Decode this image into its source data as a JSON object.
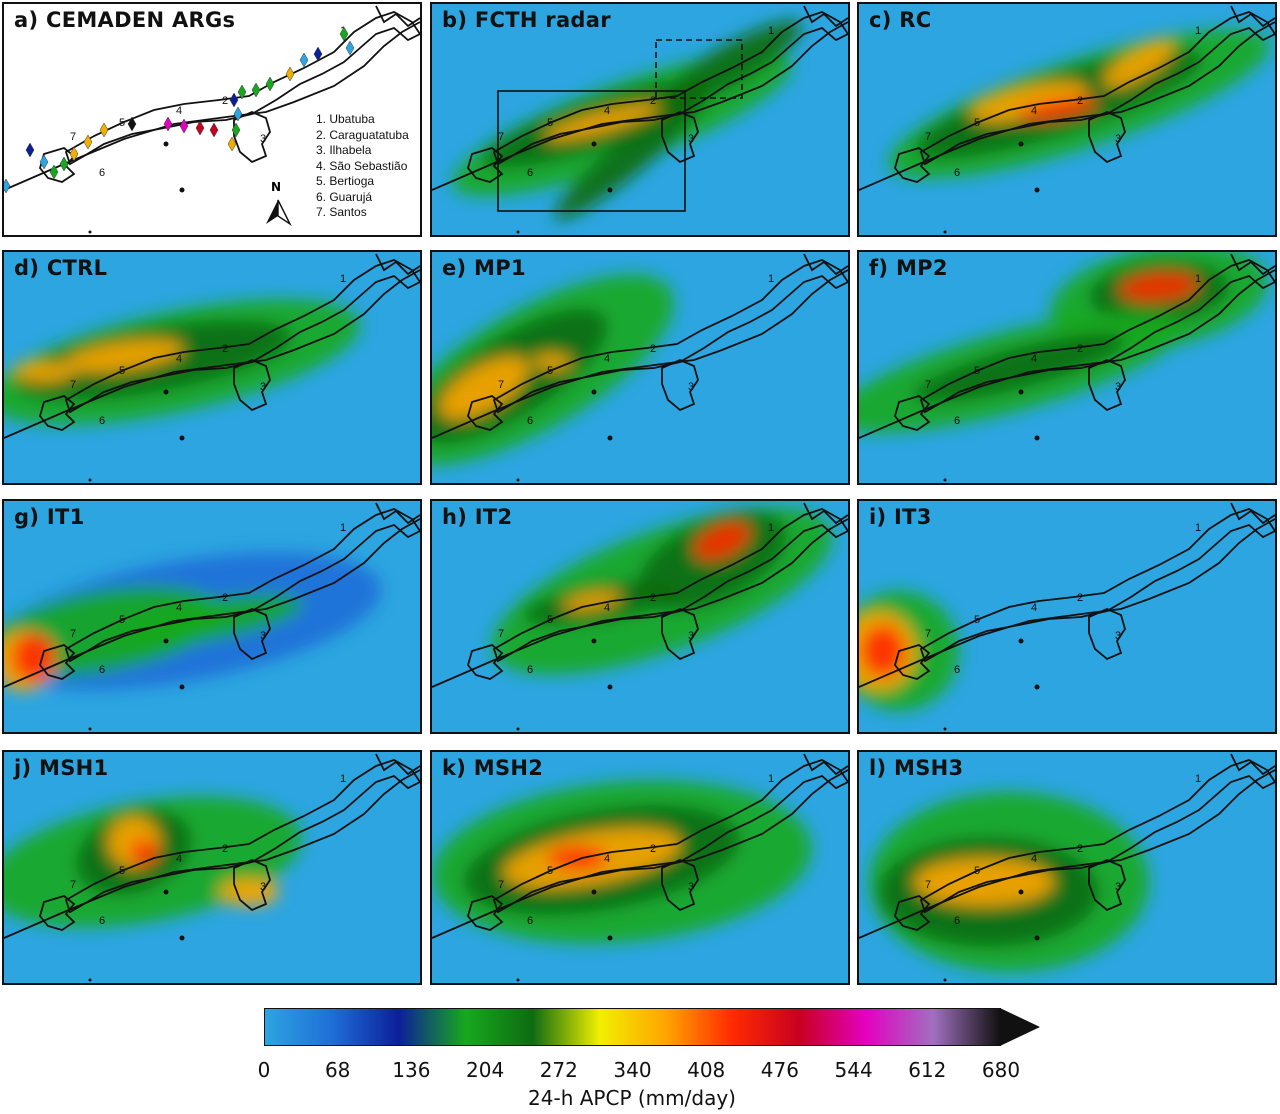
{
  "panels": [
    {
      "title": "a) CEMADEN ARGs"
    },
    {
      "title": "b) FCTH radar"
    },
    {
      "title": "c) RC"
    },
    {
      "title": "d) CTRL"
    },
    {
      "title": "e) MP1"
    },
    {
      "title": "f) MP2"
    },
    {
      "title": "g) IT1"
    },
    {
      "title": "h) IT2"
    },
    {
      "title": "i) IT3"
    },
    {
      "title": "j) MSH1"
    },
    {
      "title": "k) MSH2"
    },
    {
      "title": "l) MSH3"
    }
  ],
  "stations": [
    "1. Ubatuba",
    "2. Caraguatatuba",
    "3. Ilhabela",
    "4. São Sebastião",
    "5. Bertioga",
    "6. Guarujá",
    "7. Santos"
  ],
  "region_numbers": [
    "1",
    "2",
    "3",
    "4",
    "5",
    "6",
    "7"
  ],
  "north_arrow_label": "N",
  "colorbar": {
    "label": "24-h APCP (mm/day)",
    "ticks": [
      "0",
      "68",
      "136",
      "204",
      "272",
      "340",
      "408",
      "476",
      "544",
      "612",
      "680"
    ],
    "min": 0,
    "max": 680,
    "extend": "max",
    "colors": [
      "#2ca5e0",
      "#1f6ed8",
      "#0c1f9a",
      "#18a81e",
      "#0e6b12",
      "#f0f000",
      "#ffa500",
      "#ff2a00",
      "#c80020",
      "#e400c0",
      "#a070c0",
      "#111111"
    ]
  },
  "chart_data": {
    "type": "heatmap",
    "variable": "24-h APCP (mm/day)",
    "panels": [
      "b) FCTH radar",
      "c) RC",
      "d) CTRL",
      "e) MP1",
      "f) MP2",
      "g) IT1",
      "h) IT2",
      "i) IT3",
      "j) MSH1",
      "k) MSH2",
      "l) MSH3"
    ],
    "color_range": [
      0,
      680
    ]
  }
}
